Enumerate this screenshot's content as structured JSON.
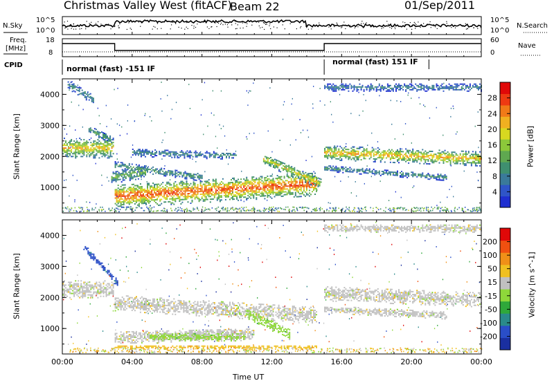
{
  "header": {
    "station": "Christmas Valley West (fitACF)",
    "beam": "Beam 22",
    "date": "01/Sep/2011"
  },
  "top_panels": {
    "nsky_label": "N.Sky",
    "nsearch_label": "N.Search",
    "noise_ticks_left": [
      "10^5",
      "10^0"
    ],
    "noise_ticks_right": [
      "10^5",
      "10^0"
    ],
    "freq_label_line1": "Freq.",
    "freq_label_line2": "[MHz]",
    "freq_ticks": [
      "18",
      "8"
    ],
    "nave_label": "Nave",
    "nave_ticks": [
      "60",
      "0"
    ],
    "cpid_label": "CPID",
    "cpid_segments": [
      "normal (fast) -151 IF",
      "normal (fast) 151 IF"
    ]
  },
  "chart_data": [
    {
      "type": "heatmap",
      "title": "",
      "variable": "Power",
      "xlabel": "",
      "ylabel": "Slant Range [km]",
      "x_range_hours": [
        0,
        24
      ],
      "ylim": [
        180,
        4500
      ],
      "yticks": [
        "4000",
        "3000",
        "2000",
        "1000"
      ],
      "colorbar": {
        "label": "Power [dB]",
        "ticks": [
          "28",
          "24",
          "20",
          "16",
          "12",
          "8",
          "4"
        ],
        "range": [
          0,
          30
        ],
        "colors": [
          "#1f2fd0",
          "#2f55c8",
          "#3a7a9a",
          "#3f8f6f",
          "#5fa850",
          "#8cc83a",
          "#d8d820",
          "#f0b020",
          "#f07a18",
          "#ee3a12",
          "#e00808"
        ]
      },
      "grid": false,
      "bands": [
        {
          "t": [
            0.0,
            3.0
          ],
          "range_km": [
            1900,
            2500
          ],
          "power_db": 18
        },
        {
          "t": [
            3.0,
            15.0
          ],
          "range_km": [
            500,
            1500
          ],
          "power_db": 24
        },
        {
          "t": [
            15.0,
            24.0
          ],
          "range_km": [
            1500,
            2500
          ],
          "power_db": 20
        }
      ]
    },
    {
      "type": "heatmap",
      "title": "",
      "variable": "Velocity",
      "xlabel": "Time UT",
      "ylabel": "Slant Range [km]",
      "x_range_hours": [
        0,
        24
      ],
      "xticks": [
        "00:00",
        "04:00",
        "08:00",
        "12:00",
        "16:00",
        "20:00",
        "00:00"
      ],
      "ylim": [
        180,
        4500
      ],
      "yticks": [
        "4000",
        "3000",
        "2000",
        "1000"
      ],
      "colorbar": {
        "label": "Velocity [m s^-1]",
        "ticks": [
          "200",
          "100",
          "50",
          "15",
          "-15",
          "-50",
          "-100",
          "-200"
        ],
        "range": [
          -250,
          250
        ],
        "colors": [
          "#1a2fa0",
          "#2a4ec8",
          "#2a8a8a",
          "#2fa83a",
          "#8ed83a",
          "#c0c0c0",
          "#f0c020",
          "#f09018",
          "#f05010",
          "#e00808"
        ]
      },
      "grid": false
    }
  ]
}
